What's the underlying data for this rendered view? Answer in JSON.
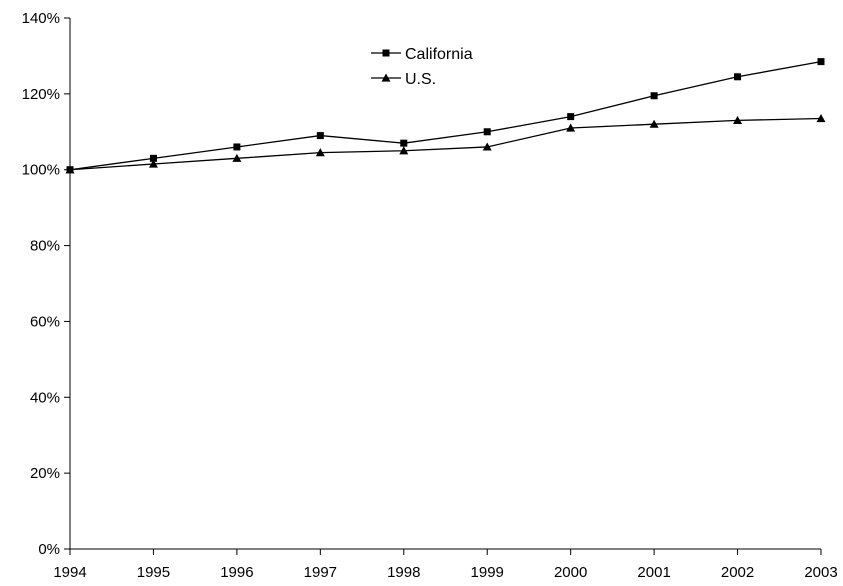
{
  "chart_data": {
    "type": "line",
    "title": "",
    "xlabel": "",
    "ylabel": "",
    "x": [
      "1994",
      "1995",
      "1996",
      "1997",
      "1998",
      "1999",
      "2000",
      "2001",
      "2002",
      "2003"
    ],
    "ylim": [
      0,
      140
    ],
    "yticks": [
      "0%",
      "20%",
      "40%",
      "60%",
      "80%",
      "100%",
      "120%",
      "140%"
    ],
    "yticks_values": [
      0,
      20,
      40,
      60,
      80,
      100,
      120,
      140
    ],
    "grid": false,
    "legend_position": "top-center",
    "series": [
      {
        "name": "California",
        "marker": "square",
        "color": "#000000",
        "values": [
          100,
          103,
          106,
          109,
          107,
          110,
          114,
          119.5,
          124.5,
          128.5
        ]
      },
      {
        "name": "U.S.",
        "marker": "triangle",
        "color": "#000000",
        "values": [
          100,
          101.5,
          103,
          104.5,
          105,
          106,
          111,
          112,
          113,
          113.5
        ]
      }
    ]
  }
}
